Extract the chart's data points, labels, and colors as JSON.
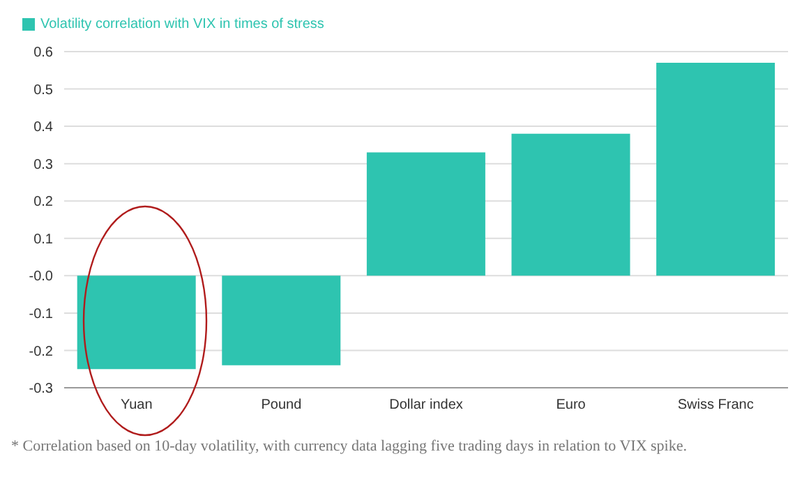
{
  "chart_data": {
    "type": "bar",
    "categories": [
      "Yuan",
      "Pound",
      "Dollar index",
      "Euro",
      "Swiss Franc"
    ],
    "series": [
      {
        "name": "Volatility correlation with VIX in times of stress",
        "color": "#2ec4b0",
        "values": [
          -0.25,
          -0.24,
          0.33,
          0.38,
          0.57
        ]
      }
    ],
    "ylim": [
      -0.3,
      0.6
    ],
    "yticks": [
      -0.3,
      -0.2,
      -0.1,
      {
        "value": 0,
        "label": "-0.0"
      },
      0.1,
      0.2,
      0.3,
      0.4,
      0.5,
      0.6
    ],
    "grid": "y",
    "legend": "top left",
    "annotations": [
      "* Correlation based on 10-day volatility, with currency data lagging five trading days in relation to VIX spike."
    ]
  }
}
